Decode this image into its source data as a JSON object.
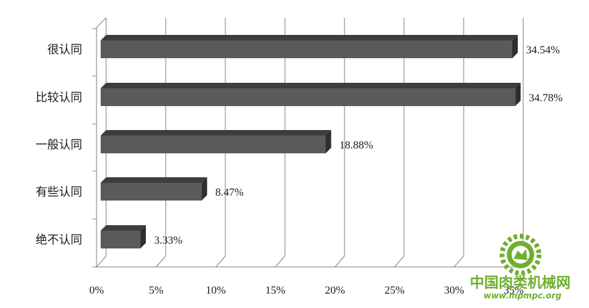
{
  "chart_data": {
    "type": "bar",
    "orientation": "horizontal",
    "style": "3d",
    "categories": [
      "很认同",
      "比较认同",
      "一般认同",
      "有些认同",
      "绝不认同"
    ],
    "values": [
      34.54,
      34.78,
      18.88,
      8.47,
      3.33
    ],
    "data_labels": [
      "34.54%",
      "34.78%",
      "18.88%",
      "8.47%",
      "3.33%"
    ],
    "xlim": [
      0,
      35
    ],
    "x_ticks": [
      0,
      5,
      10,
      15,
      20,
      25,
      30,
      35
    ],
    "x_tick_labels": [
      "0%",
      "5%",
      "10%",
      "15%",
      "20%",
      "25%",
      "30%",
      "35%"
    ],
    "grid": "vertical",
    "legend": "none",
    "colors": {
      "bar_front": "#5a5a5a",
      "bar_top": "#3d3d3d",
      "bar_side": "#2e2e2e",
      "grid": "#808080"
    }
  },
  "watermark": {
    "text": "中国肉类机械网",
    "url": "www.mpmpc.org",
    "color": "#6fae2e"
  }
}
